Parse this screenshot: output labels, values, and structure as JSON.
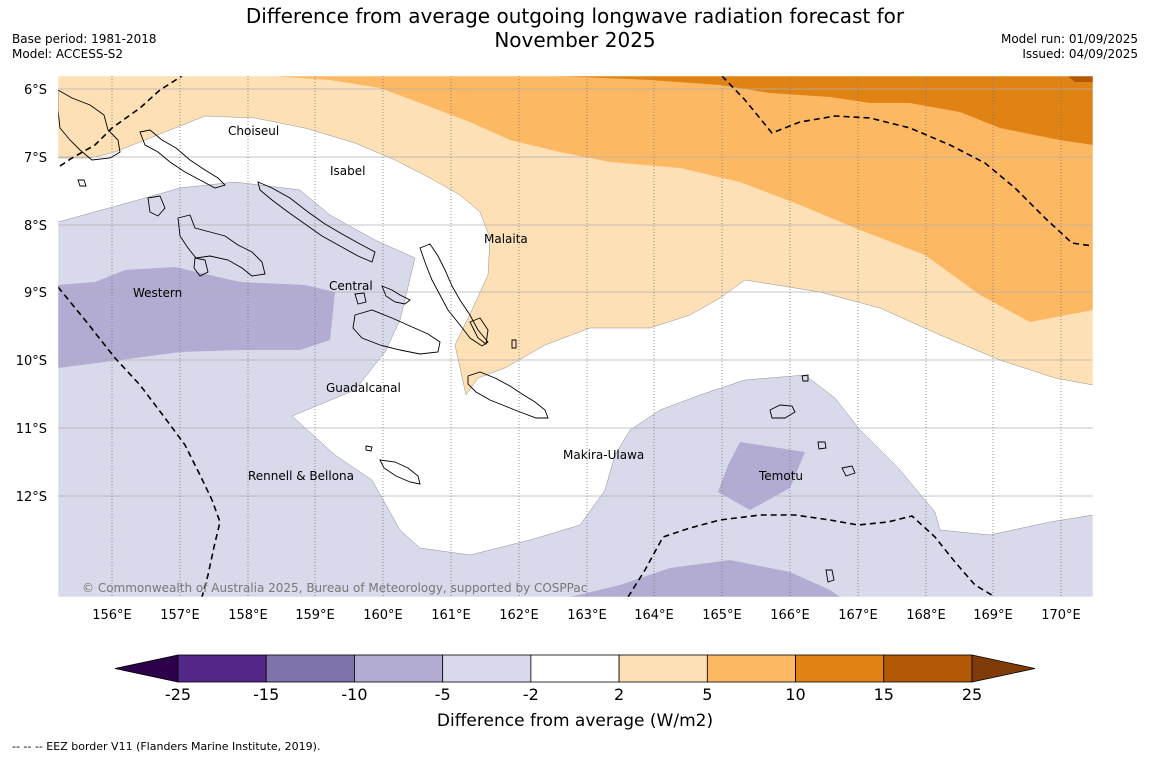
{
  "title_line1": "Difference from average outgoing longwave radiation forecast for",
  "title_line2": "November 2025",
  "meta_left": {
    "line1": "Base period: 1981-2018",
    "line2": "Model: ACCESS-S2"
  },
  "meta_right": {
    "line1": "Model run: 01/09/2025",
    "line2": "Issued: 04/09/2025"
  },
  "map": {
    "lat_ticks": [
      "6°S",
      "7°S",
      "8°S",
      "9°S",
      "10°S",
      "11°S",
      "12°S"
    ],
    "lon_ticks": [
      "156°E",
      "157°E",
      "158°E",
      "159°E",
      "160°E",
      "161°E",
      "162°E",
      "163°E",
      "164°E",
      "165°E",
      "166°E",
      "167°E",
      "168°E",
      "169°E",
      "170°E"
    ],
    "provinces": [
      "Choiseul",
      "Isabel",
      "Malaita",
      "Western",
      "Central",
      "Guadalcanal",
      "Makira-Ulawa",
      "Temotu",
      "Rennell & Bellona"
    ],
    "copyright": "© Commonwealth of Australia 2025, Bureau of Meteorology, supported by COSPPac"
  },
  "colorbar": {
    "ticks": [
      "-25",
      "-15",
      "-10",
      "-5",
      "-2",
      "2",
      "5",
      "10",
      "15",
      "25"
    ],
    "colors": [
      "#2d004b",
      "#542788",
      "#8073ac",
      "#b2abd2",
      "#d8daeb",
      "#ffffff",
      "#fee0b6",
      "#fdb863",
      "#e08214",
      "#b35806",
      "#7f3b08"
    ],
    "label": "Difference from average (W/m2)"
  },
  "footer": "--  --  -- EEZ border V11 (Flanders Marine Institute, 2019)."
}
